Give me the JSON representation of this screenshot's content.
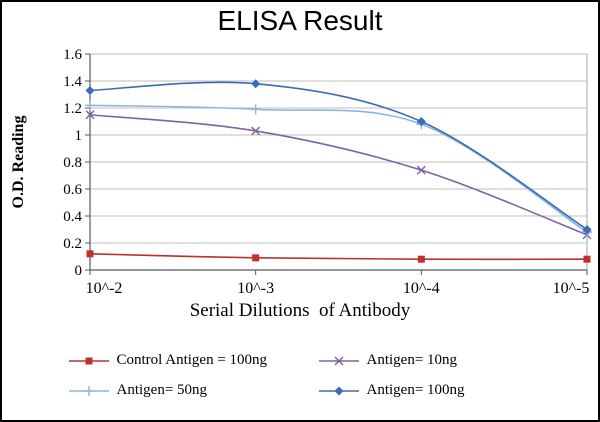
{
  "chart_data": {
    "type": "line",
    "title": "ELISA Result",
    "xlabel": "Serial Dilutions  of Antibody",
    "ylabel": "O.D. Reading",
    "categories": [
      "10^-2",
      "10^-3",
      "10^-4",
      "10^-5"
    ],
    "ylim": [
      0,
      1.6
    ],
    "ytick_step": 0.2,
    "grid": true,
    "legend_position": "bottom",
    "colors": {
      "gridline": "#bfbfbf",
      "axis": "#595959",
      "plot_border": "#a6a6a6",
      "frame_border": "#000000"
    },
    "series": [
      {
        "name": "Control Antigen = 100ng",
        "color": "#c0302b",
        "marker": "square",
        "values": [
          0.12,
          0.09,
          0.08,
          0.08
        ]
      },
      {
        "name": "Antigen= 10ng",
        "color": "#7e62a1",
        "marker": "x",
        "values": [
          1.15,
          1.03,
          0.74,
          0.26
        ]
      },
      {
        "name": "Antigen= 50ng",
        "color": "#8db4e2",
        "marker": "plus",
        "values": [
          1.22,
          1.19,
          1.08,
          0.28
        ]
      },
      {
        "name": "Antigen= 100ng",
        "color": "#3a6db5",
        "marker": "diamond",
        "values": [
          1.33,
          1.38,
          1.1,
          0.3
        ]
      }
    ]
  }
}
